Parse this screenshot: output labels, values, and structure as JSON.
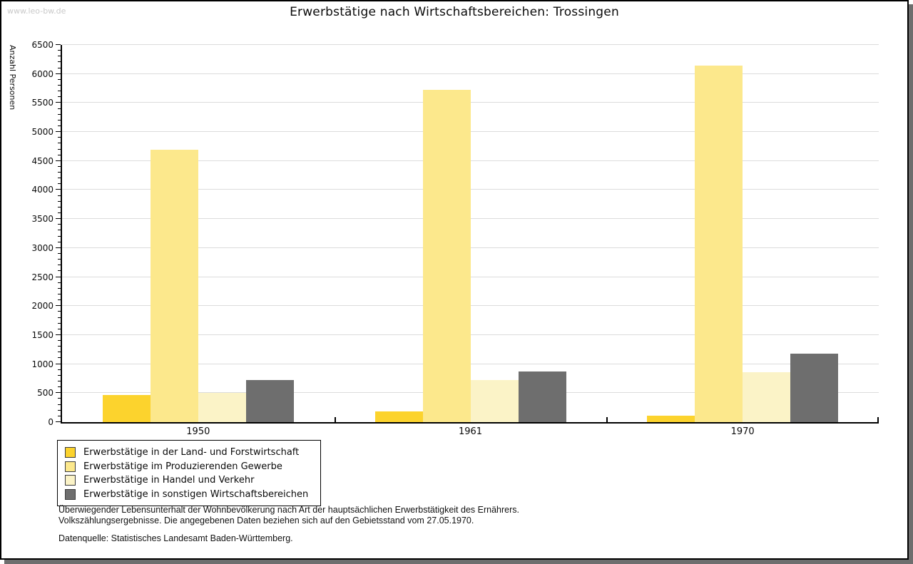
{
  "watermark": "www.leo-bw.de",
  "title": "Erwerbstätige nach Wirtschaftsbereichen: Trossingen",
  "chart_data": {
    "type": "bar",
    "title": "Erwerbstätige nach Wirtschaftsbereichen: Trossingen",
    "xlabel": "",
    "ylabel": "Anzahl Personen",
    "categories": [
      "1950",
      "1961",
      "1970"
    ],
    "series": [
      {
        "name": "Erwerbstätige in der Land- und Forstwirtschaft",
        "color": "#fcd32d",
        "values": [
          465,
          190,
          115
        ]
      },
      {
        "name": "Erwerbstätige im Produzierenden Gewerbe",
        "color": "#fce88c",
        "values": [
          4690,
          5720,
          6140
        ]
      },
      {
        "name": "Erwerbstätige in Handel und Verkehr",
        "color": "#fbf3c7",
        "values": [
          505,
          730,
          855
        ]
      },
      {
        "name": "Erwerbstätige in sonstigen Wirtschaftsbereichen",
        "color": "#6e6e6e",
        "values": [
          725,
          875,
          1185
        ]
      }
    ],
    "ylim": [
      0,
      6500
    ],
    "yticks": [
      0,
      500,
      1000,
      1500,
      2000,
      2500,
      3000,
      3500,
      4000,
      4500,
      5000,
      5500,
      6000,
      6500
    ],
    "yminor_step": 100,
    "grid": true,
    "legend_position": "bottom-left",
    "bar_colors_note": {
      "grid_color": "#dcdcdc",
      "axis_color": "#000000",
      "frame_shadow": "#6e6e6e"
    }
  },
  "footnotes": {
    "line1": "Überwiegender Lebensunterhalt der Wohnbevölkerung nach Art der hauptsächlichen Erwerbstätigkeit des Ernährers.",
    "line2": "Volkszählungsergebnisse. Die angegebenen Daten beziehen sich auf den Gebietsstand vom 27.05.1970.",
    "source": "Datenquelle: Statistisches Landesamt Baden-Württemberg."
  }
}
